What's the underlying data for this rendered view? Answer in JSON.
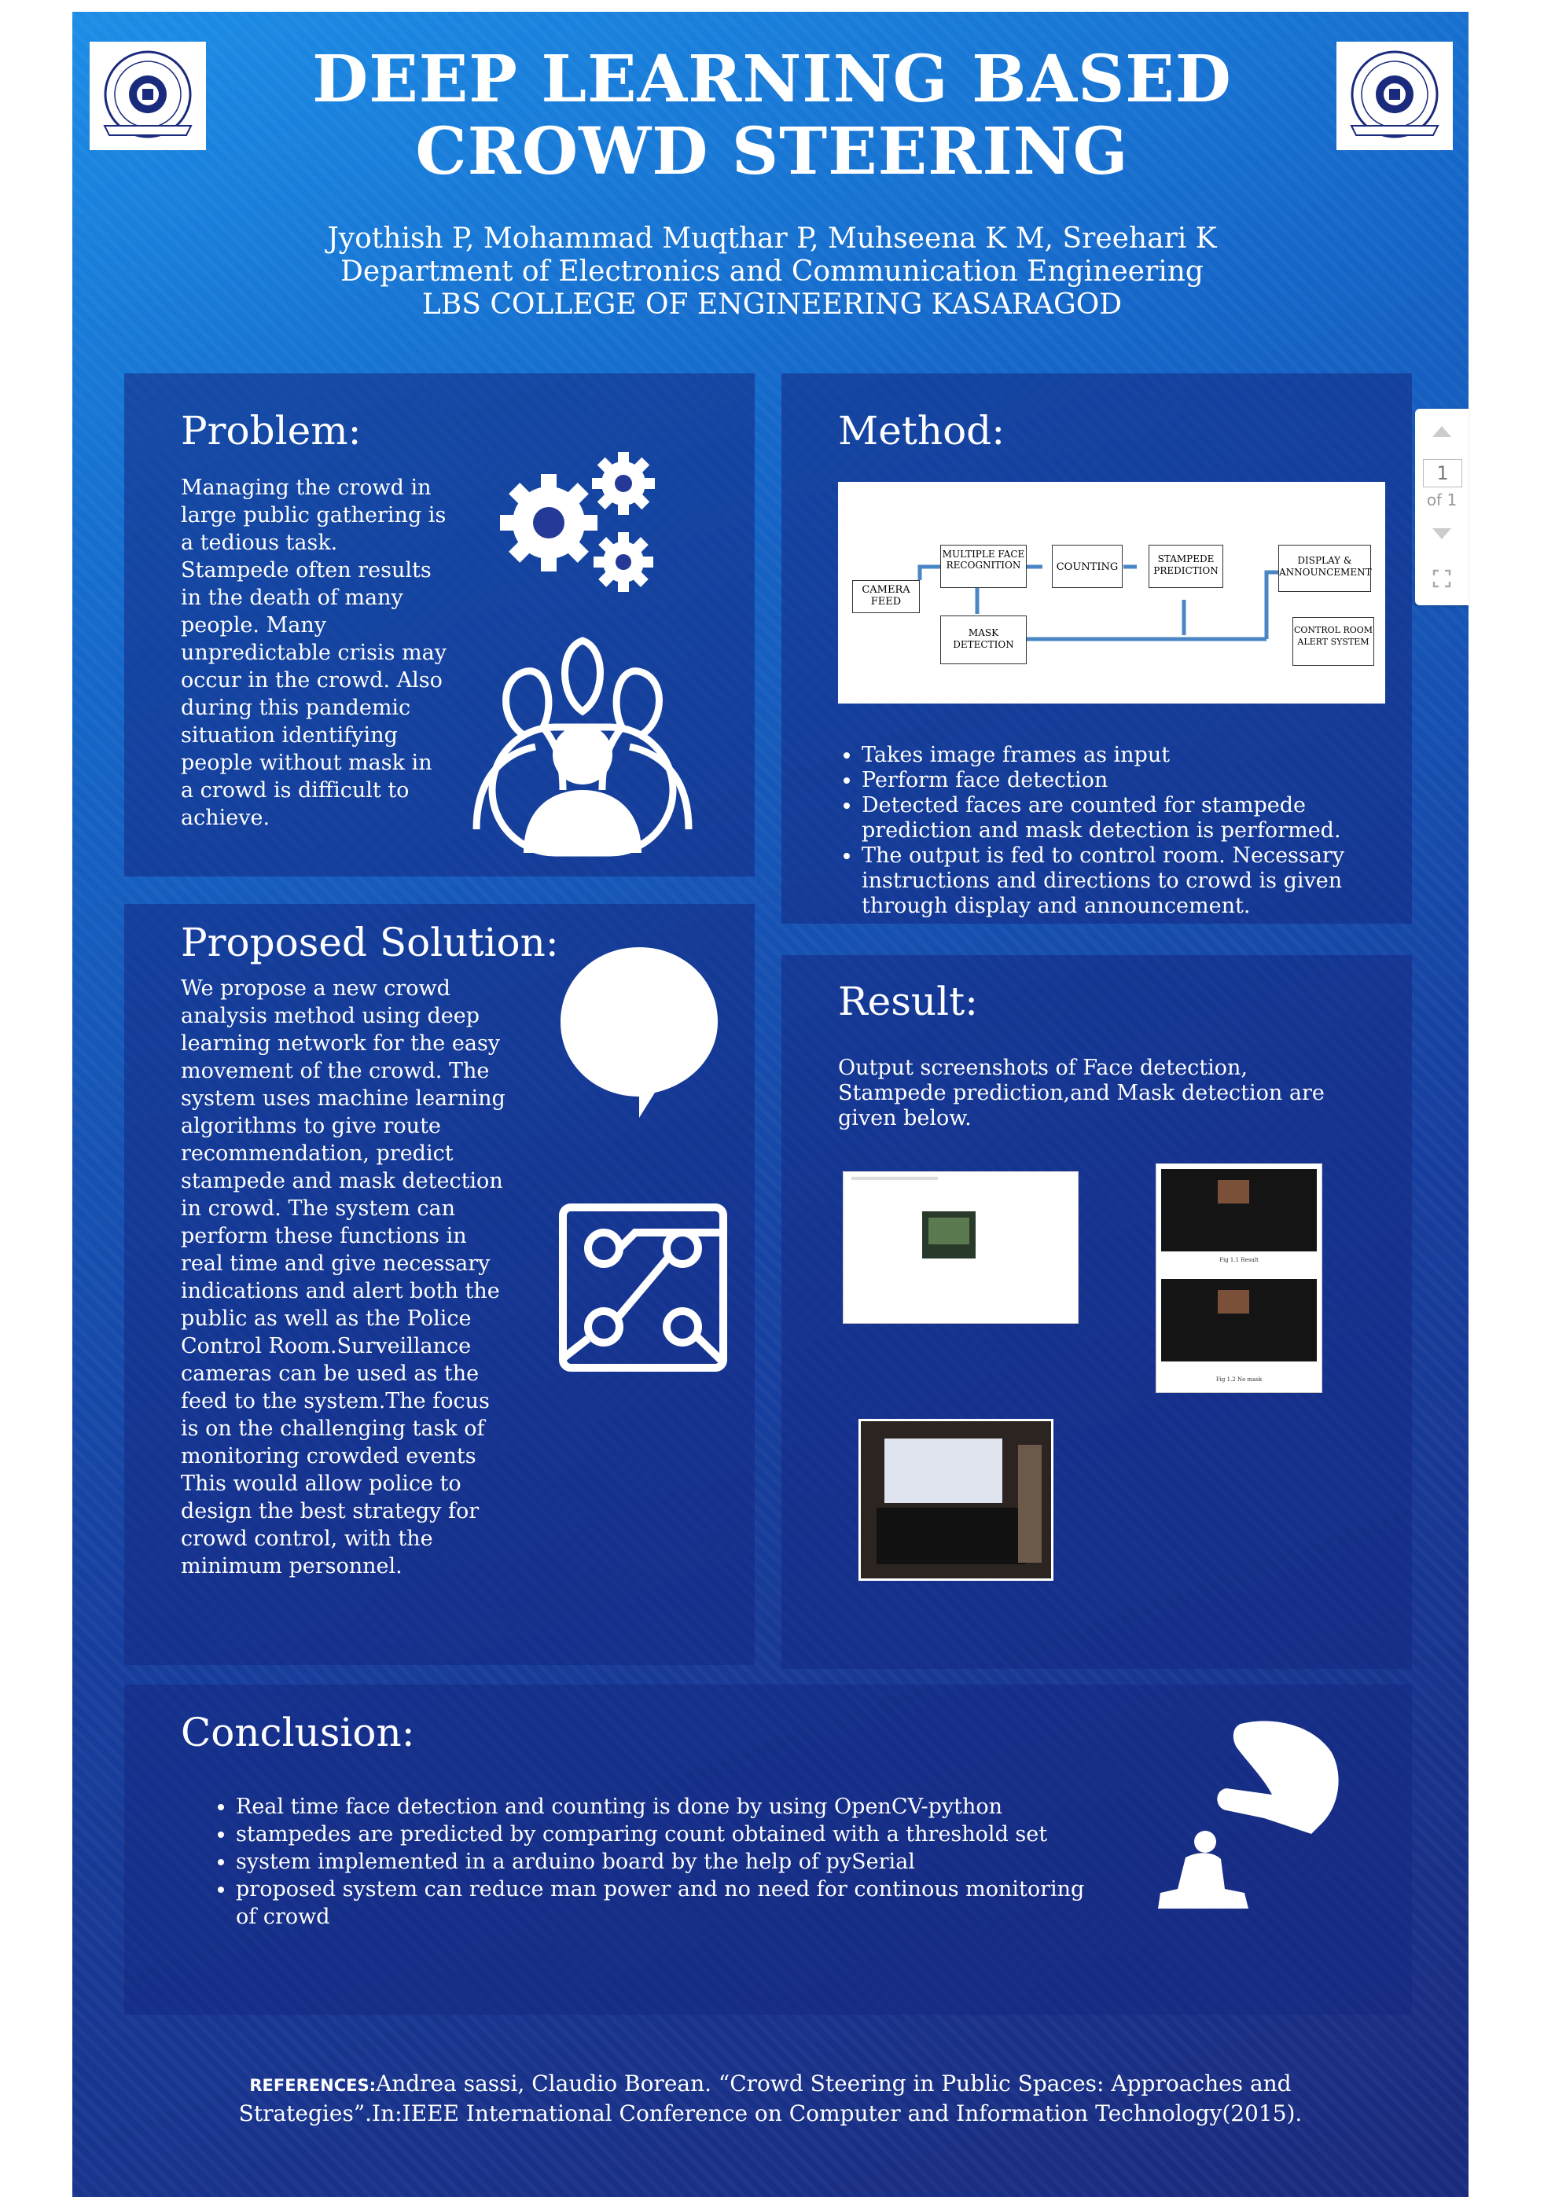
{
  "title": "DEEP LEARNING BASED CROWD STEERING",
  "authors": "Jyothish P, Mohammad Muqthar P, Muhseena K M, Sreehari K",
  "department": "Department of Electronics and Communication Engineering",
  "college": "LBS COLLEGE OF ENGINEERING KASARAGOD",
  "problem": {
    "heading": "Problem:",
    "text": "Managing the crowd in large public gathering is a tedious task. Stampede often results in the death of many people. Many unpredictable crisis may occur in the crowd. Also during this pandemic situation identifying people without mask in a crowd is difficult to achieve."
  },
  "method": {
    "heading": "Method:",
    "diagram": {
      "camera": "CAMERA FEED",
      "face": "MULTIPLE FACE RECOGNITION",
      "counting": "COUNTING",
      "stampede": "STAMPEDE PREDICTION",
      "display": "DISPLAY & ANNOUNCEMENT",
      "mask": "MASK DETECTION",
      "control": "CONTROL ROOM ALERT SYSTEM"
    },
    "bullets": [
      "Takes image frames as input",
      "Perform  face detection",
      "Detected faces are counted for stampede prediction and mask detection is performed.",
      "The output is fed to control room. Necessary instructions and directions to crowd is given through display and announcement."
    ]
  },
  "solution": {
    "heading": "Proposed Solution:",
    "text": "We propose a new crowd analysis method using deep learning network for the easy movement of the crowd. The system uses machine learning algorithms to give route recommendation, predict stampede and mask detection in crowd. The system can perform these functions in real time and give necessary indications and alert both the public as well as the Police Control Room.Surveillance cameras can be used as the feed to the system.The focus is on the challenging task of monitoring crowded events This would allow police to design the best strategy for crowd control, with the minimum personnel."
  },
  "result": {
    "heading": "Result:",
    "text": "Output screenshots of Face detection, Stampede prediction,and Mask detection are given below.",
    "caption1": "Fig 1.1 Result",
    "caption2": "Fig 1.2 No mask"
  },
  "conclusion": {
    "heading": "Conclusion:",
    "bullets": [
      "Real time face detection and counting is done by using OpenCV-python",
      "stampedes are predicted by comparing count obtained with a threshold set",
      "system implemented in a arduino board by the help of pySerial",
      "proposed system can reduce man power and no need for continous monitoring of crowd"
    ]
  },
  "references": {
    "label": "REFERENCES:",
    "text": "Andrea sassi, Claudio Borean. “Crowd Steering in Public Spaces: Approaches and Strategies”.In:IEEE International Conference on Computer and Information Technology(2015)."
  },
  "logo_text": "LBS COLLEGE OF ENGINEERING KASARAGOD",
  "pager": {
    "page": "1",
    "of": "of 1"
  },
  "colors": {
    "accent": "#1567c9",
    "panel": "#1a2a7d",
    "text": "#ffffff"
  },
  "icons": [
    "gears-icon",
    "group-icon",
    "speech-bubble-icon",
    "circuit-icon",
    "hand-touch-icon",
    "college-logo-icon"
  ]
}
